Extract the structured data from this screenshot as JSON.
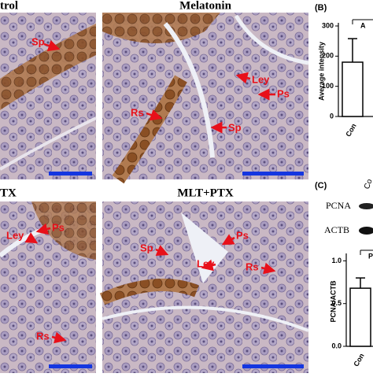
{
  "panels": [
    {
      "title": "trol",
      "labels": [
        "Sp"
      ]
    },
    {
      "title": "Melatonin",
      "labels": [
        "Ley",
        "Ps",
        "Rs",
        "Sp"
      ]
    },
    {
      "title": "TX",
      "labels": [
        "Ley",
        "Ps",
        "Rs"
      ]
    },
    {
      "title": "MLT+PTX",
      "labels": [
        "Sp",
        "Ps",
        "Ley",
        "Rs"
      ]
    }
  ],
  "chart_data": [
    {
      "type": "bar",
      "panel_label": "(B)",
      "y_label": "Average intensity",
      "annotation": "A",
      "categories": [
        "Con"
      ],
      "values": [
        180
      ],
      "errors": [
        78
      ],
      "color": "#ffffff",
      "ylim": [
        0,
        300
      ],
      "yticks": [
        0,
        100,
        200,
        300
      ]
    },
    {
      "type": "bar",
      "panel_label": "(C)",
      "y_label": "PCNA/ACTB",
      "annotation": "P=",
      "blot": {
        "lanes": [
          "Co"
        ],
        "rows": [
          "PCNA",
          "ACTB"
        ]
      },
      "categories": [
        "Con"
      ],
      "values": [
        0.68
      ],
      "errors": [
        0.12
      ],
      "color": "#ffffff",
      "ylim": [
        0,
        1.05
      ],
      "yticks": [
        {
          "value": 0,
          "label": "0.0"
        },
        {
          "value": 0.5,
          "label": "0.5"
        },
        {
          "value": 1,
          "label": "1.0"
        }
      ]
    }
  ]
}
